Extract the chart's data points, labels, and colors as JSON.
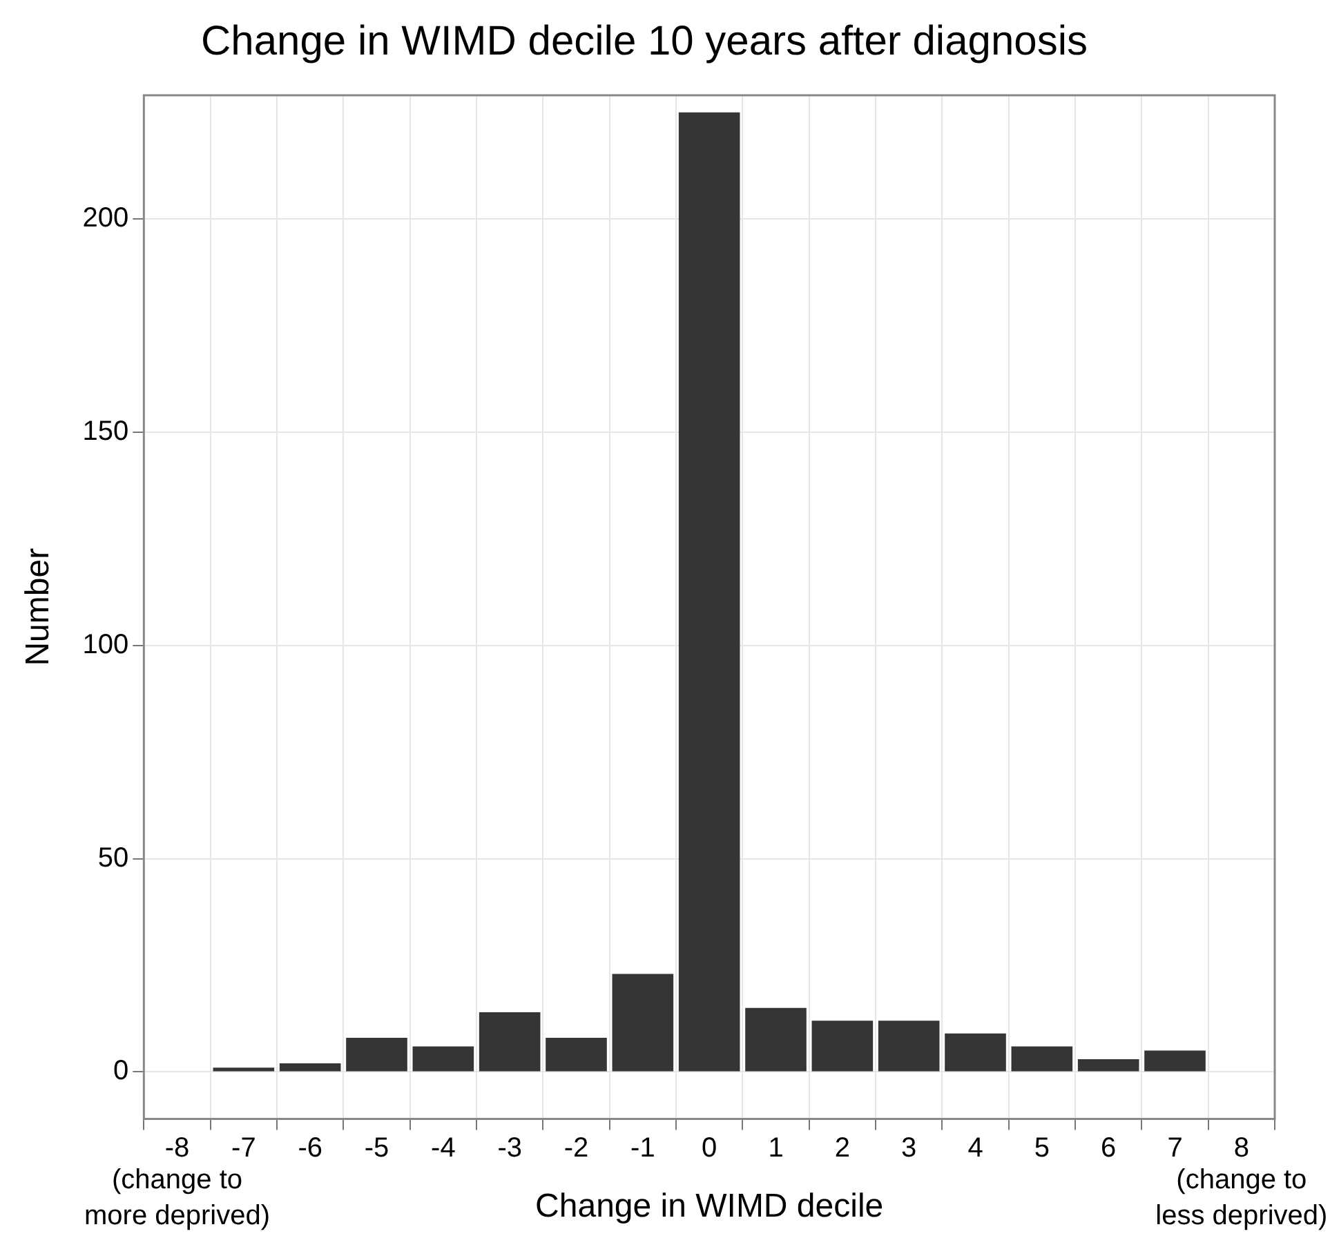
{
  "chart_data": {
    "type": "bar",
    "title": "Change in WIMD decile 10 years after diagnosis",
    "xlabel": "Change in WIMD decile",
    "ylabel": "Number",
    "categories": [
      "-8",
      "-7",
      "-6",
      "-5",
      "-4",
      "-3",
      "-2",
      "-1",
      "0",
      "1",
      "2",
      "3",
      "4",
      "5",
      "6",
      "7",
      "8"
    ],
    "values": [
      0,
      1,
      2,
      8,
      6,
      14,
      8,
      23,
      225,
      15,
      12,
      12,
      9,
      6,
      3,
      5,
      0
    ],
    "color": "#353535",
    "ylim": [
      -11,
      229
    ],
    "yticks": [
      0,
      50,
      100,
      150,
      200
    ],
    "grid": true,
    "legend": false,
    "annotations": [
      "(change to\nmore deprived)",
      "(change to\nless deprived)"
    ]
  }
}
